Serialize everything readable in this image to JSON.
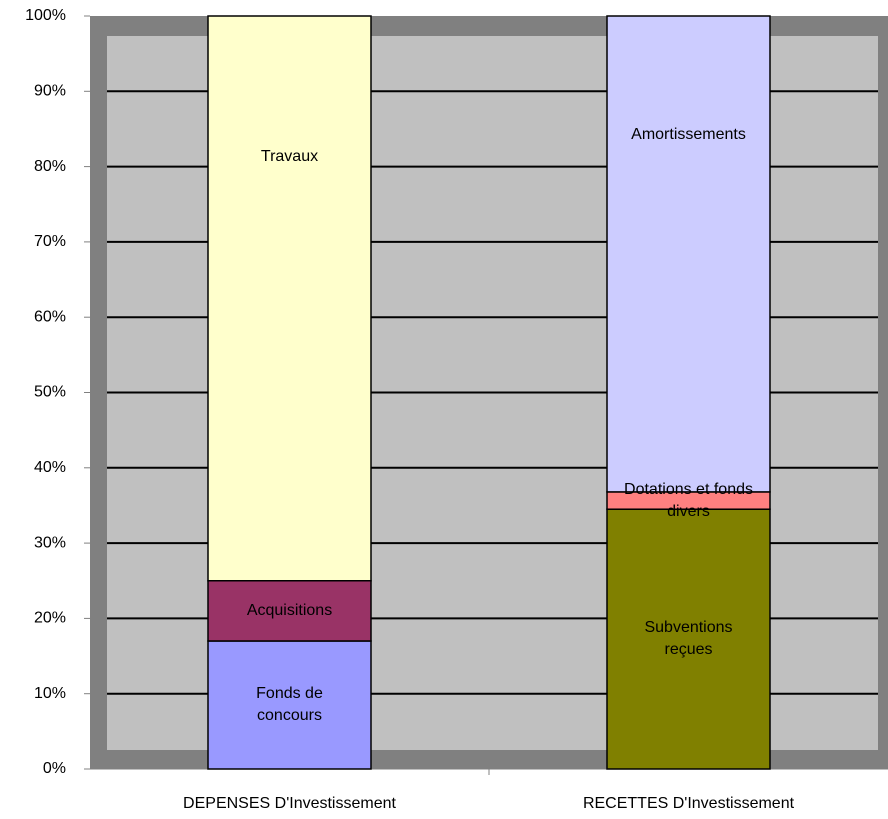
{
  "chart_data": {
    "type": "stacked_bar",
    "categories": [
      "DEPENSES D'Investissement",
      "RECETTES D'Investissement"
    ],
    "series": [
      {
        "name": "Fonds de concours",
        "color": "#9999ff",
        "values": [
          17,
          null
        ]
      },
      {
        "name": "Acquisitions",
        "color": "#993366",
        "values": [
          8,
          null
        ]
      },
      {
        "name": "Travaux",
        "color": "#ffffcc",
        "values": [
          75,
          null
        ]
      },
      {
        "name": "Subventions reçues",
        "color": "#808000",
        "values": [
          null,
          34.5
        ]
      },
      {
        "name": "Dotations et fonds divers",
        "color": "#ff8080",
        "values": [
          null,
          2.3
        ]
      },
      {
        "name": "Amortissements",
        "color": "#ccccff",
        "values": [
          null,
          63.2
        ]
      }
    ],
    "ylim": [
      0,
      100
    ],
    "yticks": [
      {
        "value": 0,
        "label": "0%"
      },
      {
        "value": 10,
        "label": "10%"
      },
      {
        "value": 20,
        "label": "20%"
      },
      {
        "value": 30,
        "label": "30%"
      },
      {
        "value": 40,
        "label": "40%"
      },
      {
        "value": 50,
        "label": "50%"
      },
      {
        "value": 60,
        "label": "60%"
      },
      {
        "value": 70,
        "label": "70%"
      },
      {
        "value": 80,
        "label": "80%"
      },
      {
        "value": 90,
        "label": "90%"
      },
      {
        "value": 100,
        "label": "100%"
      }
    ],
    "grid": true
  }
}
